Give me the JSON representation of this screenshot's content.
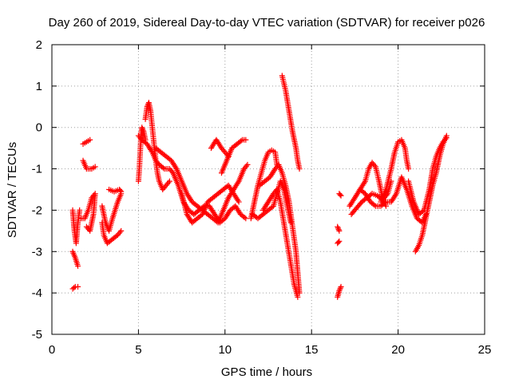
{
  "chart_data": {
    "type": "scatter",
    "title": "Day 260 of 2019, Sidereal Day-to-day VTEC variation (SDTVAR) for receiver p026",
    "xlabel": "GPS time / hours",
    "ylabel": "SDTVAR / TECUs",
    "xlim": [
      0,
      25
    ],
    "ylim": [
      -5,
      2
    ],
    "xticks": [
      "0",
      "5",
      "10",
      "15",
      "20",
      "25"
    ],
    "yticks": [
      "-5",
      "-4",
      "-3",
      "-2",
      "-1",
      "0",
      "1",
      "2"
    ],
    "grid": true,
    "marker": "plus",
    "color": "#ff0000",
    "series": [
      {
        "name": "s1",
        "points": [
          [
            1.2,
            -2.0
          ],
          [
            1.3,
            -2.5
          ],
          [
            1.4,
            -2.8
          ],
          [
            1.5,
            -2.3
          ],
          [
            1.6,
            -2.0
          ]
        ]
      },
      {
        "name": "s2",
        "points": [
          [
            1.2,
            -3.0
          ],
          [
            1.35,
            -3.15
          ],
          [
            1.5,
            -3.35
          ]
        ]
      },
      {
        "name": "s3",
        "points": [
          [
            1.2,
            -3.9
          ],
          [
            1.35,
            -3.85
          ],
          [
            1.5,
            -3.85
          ]
        ]
      },
      {
        "name": "s4",
        "points": [
          [
            1.7,
            -2.2
          ],
          [
            1.9,
            -2.2
          ],
          [
            2.1,
            -2.0
          ],
          [
            2.3,
            -1.7
          ],
          [
            2.5,
            -1.6
          ],
          [
            2.4,
            -2.1
          ],
          [
            2.2,
            -2.5
          ],
          [
            2.0,
            -2.4
          ]
        ]
      },
      {
        "name": "s5",
        "points": [
          [
            1.8,
            -0.4
          ],
          [
            2.0,
            -0.35
          ],
          [
            2.2,
            -0.3
          ]
        ]
      },
      {
        "name": "s6",
        "points": [
          [
            1.8,
            -0.8
          ],
          [
            2.0,
            -1.0
          ],
          [
            2.3,
            -1.0
          ],
          [
            2.5,
            -0.95
          ]
        ]
      },
      {
        "name": "s7",
        "points": [
          [
            2.9,
            -2.3
          ],
          [
            3.0,
            -2.6
          ],
          [
            3.2,
            -2.8
          ],
          [
            3.5,
            -2.7
          ],
          [
            3.8,
            -2.6
          ],
          [
            4.0,
            -2.5
          ]
        ]
      },
      {
        "name": "s8",
        "points": [
          [
            2.9,
            -1.9
          ],
          [
            3.1,
            -2.3
          ],
          [
            3.3,
            -2.5
          ],
          [
            3.5,
            -2.2
          ],
          [
            3.8,
            -1.8
          ],
          [
            4.0,
            -1.6
          ]
        ]
      },
      {
        "name": "s9",
        "points": [
          [
            3.3,
            -1.5
          ],
          [
            3.6,
            -1.55
          ],
          [
            3.9,
            -1.5
          ],
          [
            4.0,
            -1.55
          ]
        ]
      },
      {
        "name": "s10",
        "points": [
          [
            5.0,
            -1.3
          ],
          [
            5.05,
            -1.0
          ],
          [
            5.1,
            -0.6
          ],
          [
            5.15,
            -0.2
          ],
          [
            5.2,
            0.0
          ],
          [
            5.3,
            -0.1
          ],
          [
            5.4,
            -0.3
          ]
        ]
      },
      {
        "name": "s11",
        "points": [
          [
            5.4,
            0.2
          ],
          [
            5.5,
            0.5
          ],
          [
            5.6,
            0.6
          ],
          [
            5.7,
            0.4
          ],
          [
            5.8,
            0.0
          ],
          [
            5.9,
            -0.4
          ],
          [
            6.0,
            -0.8
          ],
          [
            6.1,
            -1.1
          ],
          [
            6.2,
            -1.3
          ],
          [
            6.4,
            -1.5
          ],
          [
            6.6,
            -1.4
          ],
          [
            6.8,
            -1.3
          ]
        ]
      },
      {
        "name": "s12",
        "points": [
          [
            5.0,
            -0.2
          ],
          [
            5.2,
            -0.3
          ],
          [
            5.5,
            -0.4
          ],
          [
            5.8,
            -0.6
          ],
          [
            6.0,
            -0.8
          ],
          [
            6.2,
            -0.9
          ],
          [
            6.5,
            -1.0
          ],
          [
            6.8,
            -1.0
          ],
          [
            7.0,
            -1.1
          ],
          [
            7.3,
            -1.4
          ],
          [
            7.6,
            -1.8
          ],
          [
            7.9,
            -2.0
          ],
          [
            8.2,
            -2.1
          ],
          [
            8.5,
            -2.0
          ],
          [
            8.8,
            -1.9
          ],
          [
            9.1,
            -1.9
          ],
          [
            9.4,
            -2.1
          ],
          [
            9.7,
            -2.3
          ],
          [
            10.0,
            -2.2
          ],
          [
            10.3,
            -2.0
          ],
          [
            10.6,
            -1.9
          ],
          [
            10.9,
            -2.1
          ],
          [
            11.2,
            -2.2
          ]
        ]
      },
      {
        "name": "s13",
        "points": [
          [
            6.0,
            -0.5
          ],
          [
            6.3,
            -0.6
          ],
          [
            6.6,
            -0.7
          ],
          [
            6.9,
            -0.8
          ],
          [
            7.2,
            -1.0
          ],
          [
            7.5,
            -1.3
          ],
          [
            7.8,
            -1.6
          ],
          [
            8.1,
            -1.8
          ],
          [
            8.4,
            -1.9
          ],
          [
            8.7,
            -2.0
          ],
          [
            9.0,
            -2.1
          ],
          [
            9.3,
            -2.2
          ],
          [
            9.6,
            -2.3
          ],
          [
            9.9,
            -2.0
          ],
          [
            10.2,
            -1.7
          ],
          [
            10.5,
            -1.5
          ],
          [
            10.8,
            -1.3
          ],
          [
            11.1,
            -1.0
          ],
          [
            11.3,
            -0.9
          ]
        ]
      },
      {
        "name": "s14",
        "points": [
          [
            7.5,
            -1.6
          ],
          [
            7.8,
            -2.1
          ],
          [
            8.1,
            -2.3
          ],
          [
            8.4,
            -2.2
          ],
          [
            8.7,
            -2.1
          ],
          [
            9.0,
            -1.8
          ],
          [
            9.3,
            -1.7
          ],
          [
            9.6,
            -1.6
          ],
          [
            9.9,
            -1.5
          ],
          [
            10.2,
            -1.4
          ],
          [
            10.5,
            -1.6
          ],
          [
            10.8,
            -1.8
          ]
        ]
      },
      {
        "name": "s15",
        "points": [
          [
            9.8,
            -1.1
          ],
          [
            10.1,
            -0.8
          ],
          [
            10.4,
            -0.5
          ],
          [
            10.7,
            -0.4
          ],
          [
            11.0,
            -0.3
          ],
          [
            11.2,
            -0.3
          ]
        ]
      },
      {
        "name": "s16",
        "points": [
          [
            9.2,
            -0.5
          ],
          [
            9.5,
            -0.3
          ],
          [
            9.8,
            -0.5
          ],
          [
            10.0,
            -0.6
          ],
          [
            10.2,
            -0.7
          ]
        ]
      },
      {
        "name": "s17",
        "points": [
          [
            11.5,
            -2.2
          ],
          [
            11.7,
            -1.8
          ],
          [
            11.9,
            -1.4
          ],
          [
            12.1,
            -1.1
          ],
          [
            12.3,
            -0.8
          ],
          [
            12.5,
            -0.6
          ],
          [
            12.7,
            -0.55
          ],
          [
            12.9,
            -0.6
          ],
          [
            13.0,
            -0.9
          ]
        ]
      },
      {
        "name": "s18",
        "points": [
          [
            11.6,
            -2.1
          ],
          [
            11.9,
            -2.2
          ],
          [
            12.2,
            -2.1
          ],
          [
            12.5,
            -2.0
          ],
          [
            12.8,
            -1.9
          ],
          [
            13.0,
            -1.6
          ],
          [
            13.2,
            -1.3
          ],
          [
            13.4,
            -1.5
          ],
          [
            13.6,
            -1.9
          ],
          [
            13.8,
            -2.3
          ]
        ]
      },
      {
        "name": "s19",
        "points": [
          [
            12.0,
            -1.4
          ],
          [
            12.3,
            -1.3
          ],
          [
            12.6,
            -1.2
          ],
          [
            12.9,
            -1.0
          ],
          [
            13.1,
            -0.9
          ],
          [
            13.3,
            -1.1
          ],
          [
            13.5,
            -1.4
          ],
          [
            13.7,
            -1.8
          ],
          [
            13.9,
            -2.4
          ],
          [
            14.1,
            -3.0
          ],
          [
            14.2,
            -3.5
          ],
          [
            14.3,
            -4.0
          ]
        ]
      },
      {
        "name": "s20",
        "points": [
          [
            12.2,
            -2.0
          ],
          [
            12.5,
            -1.8
          ],
          [
            12.8,
            -1.6
          ],
          [
            13.0,
            -1.5
          ],
          [
            13.2,
            -1.8
          ],
          [
            13.4,
            -2.3
          ],
          [
            13.6,
            -2.8
          ],
          [
            13.8,
            -3.3
          ],
          [
            14.0,
            -3.8
          ],
          [
            14.2,
            -4.1
          ]
        ]
      },
      {
        "name": "s21",
        "points": [
          [
            13.3,
            1.25
          ],
          [
            13.5,
            0.9
          ],
          [
            13.7,
            0.4
          ],
          [
            13.9,
            -0.1
          ],
          [
            14.1,
            -0.5
          ],
          [
            14.2,
            -0.8
          ],
          [
            14.3,
            -1.0
          ]
        ]
      },
      {
        "name": "s22",
        "points": [
          [
            16.5,
            -4.1
          ],
          [
            16.6,
            -3.95
          ],
          [
            16.7,
            -3.85
          ]
        ]
      },
      {
        "name": "s23",
        "points": [
          [
            16.5,
            -2.8
          ],
          [
            16.6,
            -2.75
          ]
        ]
      },
      {
        "name": "s24",
        "points": [
          [
            16.5,
            -2.4
          ],
          [
            16.6,
            -2.5
          ]
        ]
      },
      {
        "name": "s25",
        "points": [
          [
            16.6,
            -1.6
          ],
          [
            16.7,
            -1.65
          ]
        ]
      },
      {
        "name": "s26",
        "points": [
          [
            17.2,
            -1.9
          ],
          [
            17.5,
            -1.7
          ],
          [
            17.8,
            -1.5
          ],
          [
            18.1,
            -1.3
          ],
          [
            18.3,
            -1.0
          ],
          [
            18.5,
            -0.85
          ],
          [
            18.7,
            -0.95
          ],
          [
            18.9,
            -1.3
          ],
          [
            19.1,
            -1.7
          ],
          [
            19.3,
            -1.9
          ]
        ]
      },
      {
        "name": "s27",
        "points": [
          [
            17.3,
            -2.1
          ],
          [
            17.6,
            -1.95
          ],
          [
            17.9,
            -1.8
          ],
          [
            18.2,
            -1.7
          ],
          [
            18.5,
            -1.6
          ],
          [
            18.8,
            -1.65
          ],
          [
            19.1,
            -1.75
          ],
          [
            19.4,
            -1.6
          ],
          [
            19.6,
            -1.3
          ]
        ]
      },
      {
        "name": "s28",
        "points": [
          [
            19.0,
            -1.8
          ],
          [
            19.3,
            -1.5
          ],
          [
            19.6,
            -1.0
          ],
          [
            19.8,
            -0.6
          ],
          [
            20.0,
            -0.35
          ],
          [
            20.2,
            -0.3
          ],
          [
            20.4,
            -0.5
          ],
          [
            20.5,
            -0.8
          ],
          [
            20.6,
            -1.0
          ]
        ]
      },
      {
        "name": "s29",
        "points": [
          [
            17.8,
            -1.5
          ],
          [
            18.1,
            -1.6
          ],
          [
            18.4,
            -1.8
          ],
          [
            18.7,
            -1.9
          ],
          [
            19.0,
            -1.9
          ],
          [
            19.3,
            -1.8
          ],
          [
            19.6,
            -1.8
          ],
          [
            19.9,
            -1.6
          ],
          [
            20.2,
            -1.2
          ],
          [
            20.5,
            -1.5
          ],
          [
            20.8,
            -1.9
          ],
          [
            21.1,
            -2.2
          ],
          [
            21.4,
            -2.3
          ],
          [
            21.6,
            -2.1
          ]
        ]
      },
      {
        "name": "s30",
        "points": [
          [
            20.6,
            -1.3
          ],
          [
            20.9,
            -1.8
          ],
          [
            21.2,
            -2.1
          ],
          [
            21.5,
            -2.0
          ],
          [
            21.8,
            -1.5
          ],
          [
            22.0,
            -1.0
          ],
          [
            22.2,
            -0.7
          ],
          [
            22.4,
            -0.5
          ],
          [
            22.6,
            -0.35
          ],
          [
            22.8,
            -0.25
          ]
        ]
      },
      {
        "name": "s31",
        "points": [
          [
            21.0,
            -3.0
          ],
          [
            21.2,
            -2.85
          ],
          [
            21.4,
            -2.6
          ],
          [
            21.6,
            -2.2
          ],
          [
            21.8,
            -1.8
          ],
          [
            22.0,
            -1.4
          ],
          [
            22.2,
            -1.1
          ],
          [
            22.4,
            -0.7
          ],
          [
            22.6,
            -0.4
          ],
          [
            22.8,
            -0.2
          ]
        ]
      }
    ]
  }
}
